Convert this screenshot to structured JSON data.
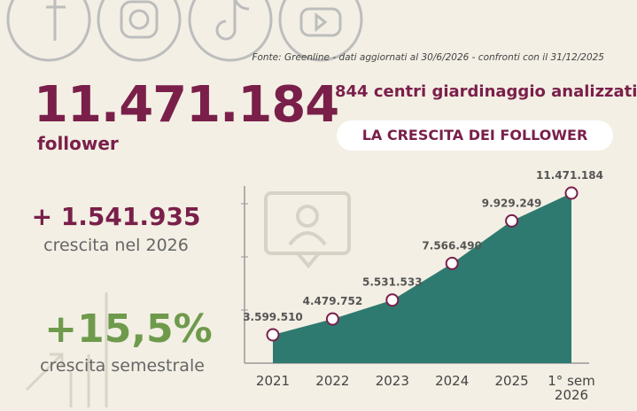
{
  "source": "Fonte: Greenline - dati aggiornati al 30/6/2026 - confronti con il 31/12/2025",
  "headline": {
    "value": "11.471.184",
    "label": "follower"
  },
  "subtitle": "844 centri giardinaggio analizzati",
  "growth": {
    "value": "+ 1.541.935",
    "label": "crescita nel 2026"
  },
  "growth_pct": {
    "value": "+15,5%",
    "label": "crescita semestrale"
  },
  "chart_data": {
    "type": "area",
    "title": "LA CRESCITA DEI FOLLOWER",
    "categories": [
      "2021",
      "2022",
      "2023",
      "2024",
      "2025",
      "1° sem 2026"
    ],
    "values": [
      3599510,
      4479752,
      5531533,
      7566490,
      9929249,
      11471184
    ],
    "value_labels": [
      "3.599.510",
      "4.479.752",
      "5.531.533",
      "7.566.490",
      "9.929.249",
      "11.471.184"
    ],
    "color": "#2f7a70"
  }
}
